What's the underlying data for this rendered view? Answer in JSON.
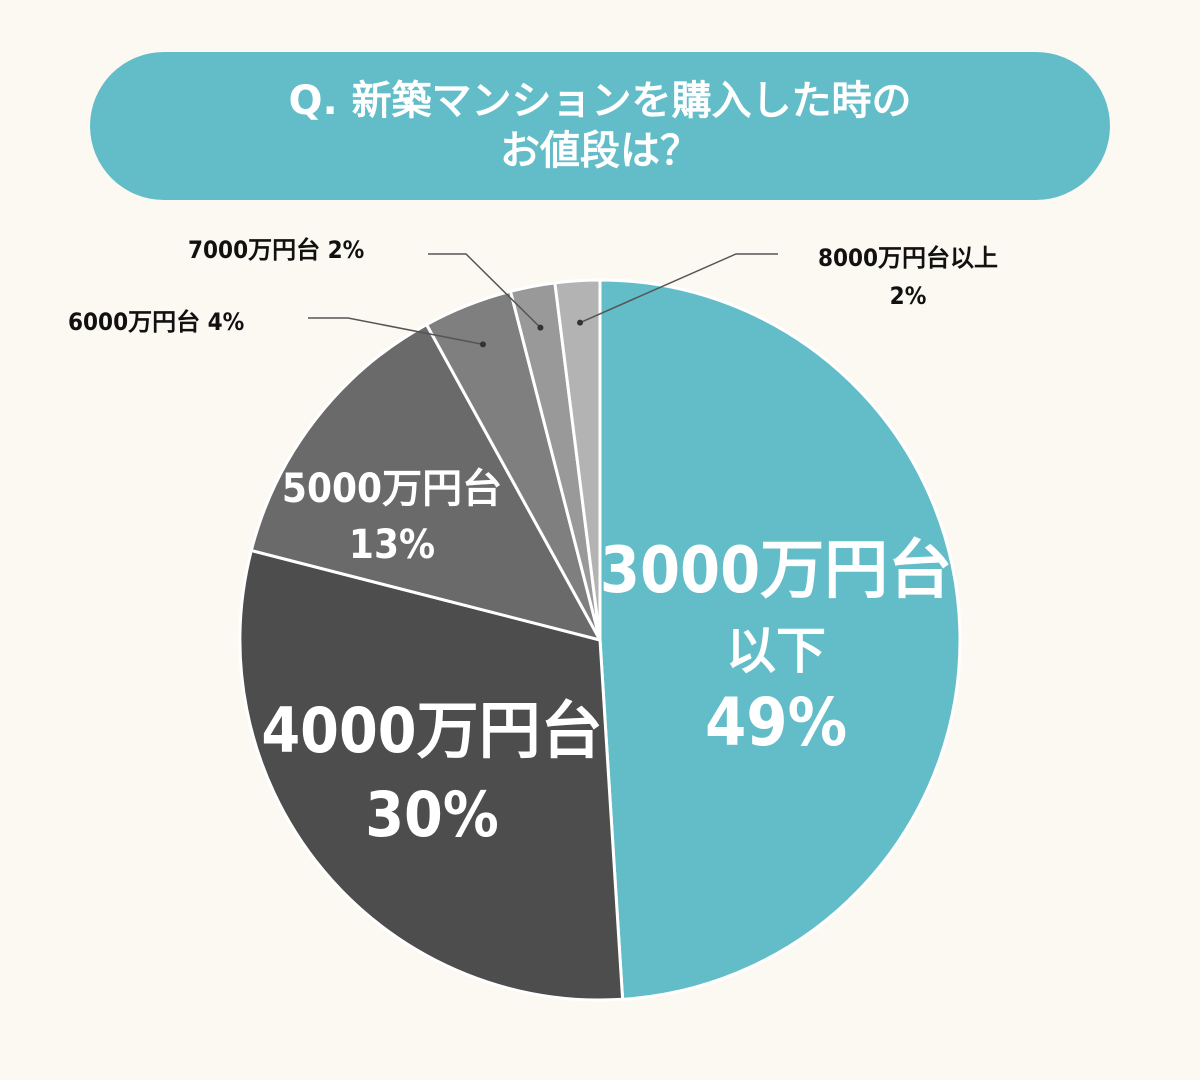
{
  "title": {
    "line1": "Q. 新築マンションを購入した時の",
    "line2": "お値段は？"
  },
  "colors": {
    "background": "#fcf9f3",
    "title_bg": "#62bdc8",
    "slice_border": "#ffffff",
    "leader": "#555555"
  },
  "chart_data": {
    "type": "pie",
    "title": "Q. 新築マンションを購入した時のお値段は？",
    "start_angle_deg": 0,
    "direction": "clockwise",
    "slices": [
      {
        "label_lines": [
          "3000万円台",
          "以下"
        ],
        "percent_label": "49%",
        "value": 49,
        "color": "#62bdc8",
        "text_color": "#ffffff",
        "placement": "inside"
      },
      {
        "label_lines": [
          "4000万円台"
        ],
        "percent_label": "30%",
        "value": 30,
        "color": "#4d4d4d",
        "text_color": "#ffffff",
        "placement": "inside"
      },
      {
        "label_lines": [
          "5000万円台"
        ],
        "percent_label": "13%",
        "value": 13,
        "color": "#6a6a6a",
        "text_color": "#ffffff",
        "placement": "inside"
      },
      {
        "label_lines": [
          "6000万円台"
        ],
        "percent_label": "4%",
        "value": 4,
        "color": "#7f7f7f",
        "text_color": "#111111",
        "placement": "outside"
      },
      {
        "label_lines": [
          "7000万円台"
        ],
        "percent_label": "2%",
        "value": 2,
        "color": "#999999",
        "text_color": "#111111",
        "placement": "outside"
      },
      {
        "label_lines": [
          "8000万円台以上"
        ],
        "percent_label": "2%",
        "value": 2,
        "color": "#b3b3b3",
        "text_color": "#111111",
        "placement": "outside"
      }
    ]
  }
}
